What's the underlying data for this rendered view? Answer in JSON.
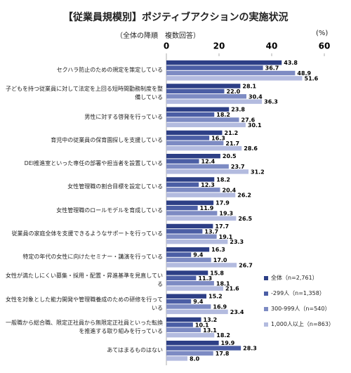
{
  "chart_data": {
    "type": "hbar",
    "title": "【従業員規模別】ポジティブアクションの実施状況",
    "subtitle": "（全体の降順　複数回答）",
    "unit": "(%)",
    "xlim": [
      0,
      60
    ],
    "xticks": [
      0,
      20,
      40,
      60
    ],
    "grid": false,
    "legend": "lower right",
    "categories": [
      "セクハラ防止のための規定を策定している",
      "子どもを持つ従業員に対して法定を上回る短時間勤務制度を整備している",
      "男性に対する啓発を行っている",
      "育児中の従業員の保育園探しを支援している",
      "DEI推進室といった専任の部署や担当者を設置している",
      "女性管理職の割合目標を設定している",
      "女性管理職のロールモデルを育成している",
      "従業員の家庭全体を支援できるようなサポートを行っている",
      "特定の年代の女性に向けたセミナー・講演を行っている",
      "女性が満たしにくい募集・採用・配置・昇進基準を見直している",
      "女性を対象とした能力開発や管理職養成のための研修を行っている",
      "一般職から総合職、限定正社員から無限定正社員といった転換を推進する取り組みを行っている",
      "あてはまるものはない"
    ],
    "series": [
      {
        "name": "全体（n=2,761）",
        "color": "#2d3f86",
        "values": [
          43.8,
          28.1,
          23.8,
          21.2,
          20.5,
          18.2,
          17.9,
          17.7,
          16.3,
          15.8,
          15.2,
          13.2,
          19.9
        ],
        "value_labels": [
          "43.8",
          "28.1",
          "23.8",
          "21.2",
          "20.5",
          "18.2",
          "17.9",
          "17.7",
          "16.3",
          "15.8",
          "15.2",
          "13.2",
          "19.9"
        ]
      },
      {
        "name": "-299人（n=1,358）",
        "color": "#4b5ea5",
        "values": [
          36.7,
          22.0,
          18.2,
          16.3,
          12.4,
          12.3,
          11.9,
          13.7,
          9.4,
          11.3,
          9.4,
          10.1,
          28.3
        ],
        "value_labels": [
          "36.7",
          "22.0",
          "18.2",
          "16.3",
          "12.4",
          "12.3",
          "11.9",
          "13.7",
          "9.4",
          "11.3",
          "9.4",
          "10.1",
          "28.3"
        ]
      },
      {
        "name": "300-999人（n=540）",
        "color": "#7d8bc3",
        "values": [
          48.9,
          30.4,
          27.6,
          21.7,
          23.7,
          20.4,
          19.3,
          19.1,
          17.0,
          18.1,
          16.9,
          13.1,
          17.8
        ],
        "value_labels": [
          "48.9",
          "30.4",
          "27.6",
          "21.7",
          "23.7",
          "20.4",
          "19.3",
          "19.1",
          "17.0",
          "18.1",
          "16.9",
          "13.1",
          "17.8"
        ]
      },
      {
        "name": "1,000人以上（n=863）",
        "color": "#b3bbdf",
        "values": [
          51.6,
          36.3,
          30.1,
          28.6,
          31.2,
          26.2,
          26.5,
          23.3,
          26.7,
          21.6,
          23.4,
          18.2,
          8.0
        ],
        "value_labels": [
          "51.6",
          "36.3",
          "30.1",
          "28.6",
          "31.2",
          "26.2",
          "26.5",
          "23.3",
          "26.7",
          "21.6",
          "23.4",
          "18.2",
          "8.0"
        ]
      }
    ]
  }
}
